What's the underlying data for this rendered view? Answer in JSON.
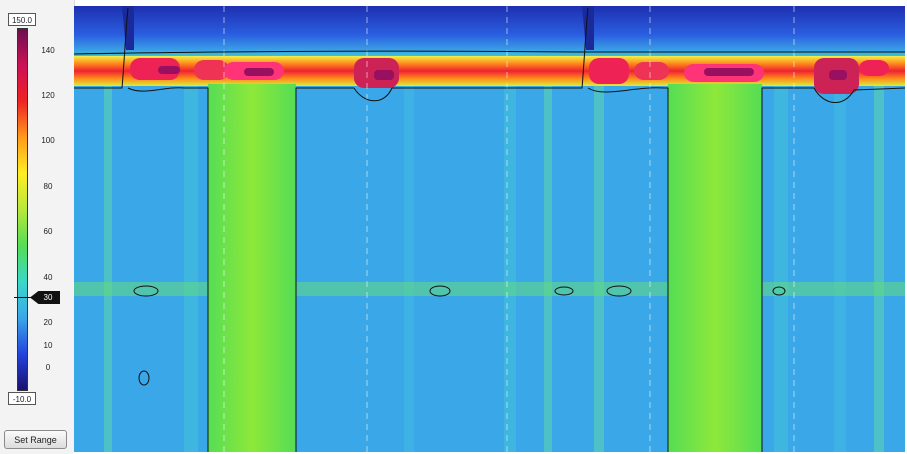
{
  "controls": {
    "range_max_label": "150.0",
    "range_min_label": "-10.0",
    "threshold_label": "30",
    "set_range_label": "Set Range"
  },
  "colorbar": {
    "min": -10,
    "max": 150,
    "tick_labels": [
      "140",
      "120",
      "100",
      "80",
      "60",
      "40",
      "20",
      "10",
      "0"
    ],
    "tick_values": [
      140,
      120,
      100,
      80,
      60,
      40,
      20,
      10,
      0
    ],
    "colors": [
      "#1a1070",
      "#2244dd",
      "#3aa8e8",
      "#3ad8c8",
      "#55dd55",
      "#b8e83a",
      "#ffee22",
      "#ff9a1a",
      "#ee2222",
      "#cc1155",
      "#6a1050"
    ]
  },
  "chart_data": {
    "type": "heatmap",
    "title": "",
    "xlabel": "",
    "ylabel": "",
    "value_range": [
      -10,
      150
    ],
    "isocontour_value": 30,
    "background_value": 25,
    "events": [
      {
        "band_top_value": 0,
        "band_mid_value": 25,
        "band_peak_value": 135,
        "column_value": 38
      },
      {
        "band_top_value": 0,
        "band_mid_value": 25,
        "band_peak_value": 135,
        "column_value": 38
      }
    ]
  }
}
